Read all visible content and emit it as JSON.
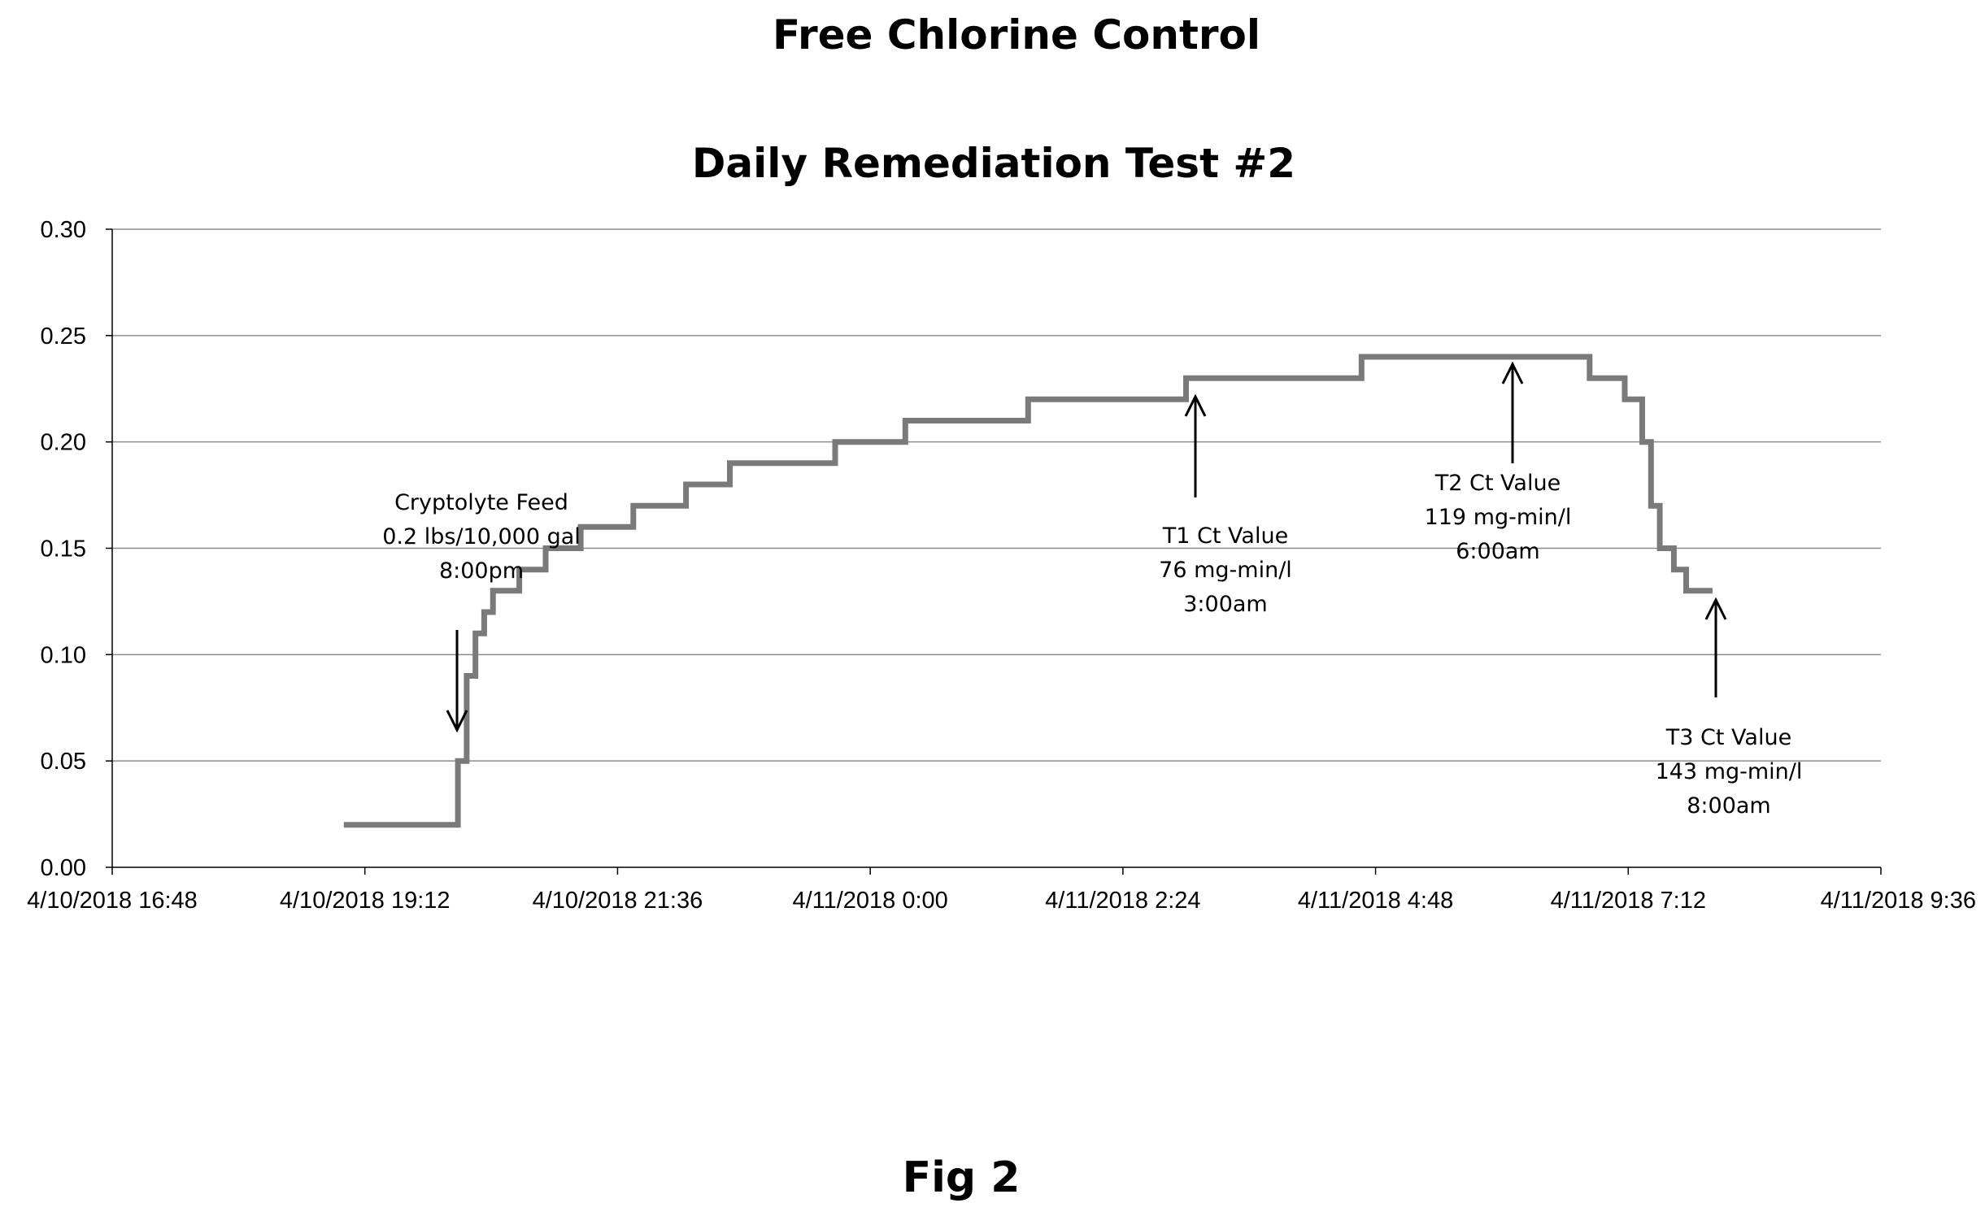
{
  "figure_label": "Fig 2",
  "chart_data": {
    "type": "line",
    "title": "Free Chlorine Control",
    "subtitle": "Daily Remediation Test #2",
    "xlabel": "",
    "ylabel": "",
    "ylim": [
      0,
      0.3
    ],
    "yticks": [
      "0.00",
      "0.05",
      "0.10",
      "0.15",
      "0.20",
      "0.25",
      "0.30"
    ],
    "xlim": [
      "2018-04-10 16:48",
      "2018-04-11 09:36"
    ],
    "xticks": [
      "4/10/2018 16:48",
      "4/10/2018 19:12",
      "4/10/2018 21:36",
      "4/11/2018 0:00",
      "4/11/2018 2:24",
      "4/11/2018 4:48",
      "4/11/2018 7:12",
      "4/11/2018 9:36"
    ],
    "grid": "horizontal",
    "legend": "none",
    "line_color": "#7a7a7a",
    "series": [
      {
        "x": [
          "2018-04-10 19:00",
          "2018-04-10 20:00",
          "2018-04-10 20:05",
          "2018-04-10 20:10",
          "2018-04-10 20:15",
          "2018-04-10 20:20",
          "2018-04-10 20:25",
          "2018-04-10 20:30",
          "2018-04-10 20:40",
          "2018-04-10 20:55",
          "2018-04-10 21:15",
          "2018-04-10 21:45",
          "2018-04-10 22:15",
          "2018-04-10 22:40",
          "2018-04-10 23:10",
          "2018-04-10 23:40",
          "2018-04-11 00:00",
          "2018-04-11 00:20",
          "2018-04-11 01:00",
          "2018-04-11 01:30",
          "2018-04-11 02:00",
          "2018-04-11 03:00",
          "2018-04-11 04:00",
          "2018-04-11 04:40",
          "2018-04-11 05:30",
          "2018-04-11 06:00",
          "2018-04-11 06:30",
          "2018-04-11 06:50",
          "2018-04-11 07:10",
          "2018-04-11 07:20",
          "2018-04-11 07:25",
          "2018-04-11 07:30",
          "2018-04-11 07:38",
          "2018-04-11 07:45",
          "2018-04-11 08:00"
        ],
        "values": [
          0.02,
          0.02,
          0.05,
          0.09,
          0.11,
          0.12,
          0.13,
          0.13,
          0.14,
          0.15,
          0.16,
          0.17,
          0.18,
          0.19,
          0.19,
          0.2,
          0.2,
          0.21,
          0.21,
          0.22,
          0.22,
          0.23,
          0.23,
          0.24,
          0.24,
          0.24,
          0.24,
          0.23,
          0.22,
          0.2,
          0.17,
          0.15,
          0.14,
          0.13,
          0.13
        ]
      }
    ],
    "annotations": [
      {
        "lines": [
          "Cryptolyte Feed",
          "0.2 lbs/10,000 gal",
          "8:00pm"
        ],
        "arrow": "down",
        "x": "2018-04-10 19:55"
      },
      {
        "lines": [
          "T1  Ct Value",
          "76 mg-min/l",
          "3:00am"
        ],
        "arrow": "up",
        "x": "2018-04-11 03:00"
      },
      {
        "lines": [
          "T2  Ct Value",
          "119 mg-min/l",
          "6:00am"
        ],
        "arrow": "up",
        "x": "2018-04-11 06:00"
      },
      {
        "lines": [
          "T3  Ct Value",
          "143 mg-min/l",
          "8:00am"
        ],
        "arrow": "up",
        "x": "2018-04-11 08:00"
      }
    ]
  }
}
